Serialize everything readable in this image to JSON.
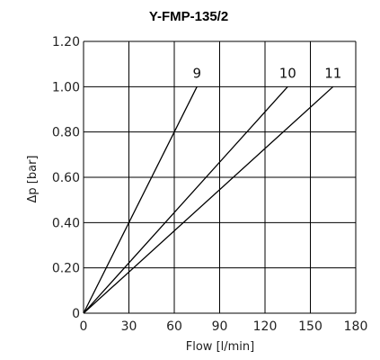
{
  "chart_data": {
    "type": "line",
    "title": "Y-FMP-135/2",
    "xlabel": "Flow  [l/min]",
    "ylabel": "Δp [bar]",
    "xlim": [
      0,
      180
    ],
    "ylim": [
      0,
      1.2
    ],
    "xticks": [
      0,
      30,
      60,
      90,
      120,
      150,
      180
    ],
    "xtick_labels": [
      "0",
      "30",
      "60",
      "90",
      "120",
      "150",
      "180"
    ],
    "yticks": [
      0,
      0.2,
      0.4,
      0.6,
      0.8,
      1.0,
      1.2
    ],
    "ytick_labels": [
      "0",
      "0.20",
      "0.40",
      "0.60",
      "0.80",
      "1.00",
      "1.20"
    ],
    "grid": true,
    "series": [
      {
        "name": "9",
        "x": [
          0,
          75
        ],
        "y": [
          0,
          1.0
        ]
      },
      {
        "name": "10",
        "x": [
          0,
          135
        ],
        "y": [
          0,
          1.0
        ]
      },
      {
        "name": "11",
        "x": [
          0,
          165
        ],
        "y": [
          0,
          1.0
        ]
      }
    ]
  }
}
